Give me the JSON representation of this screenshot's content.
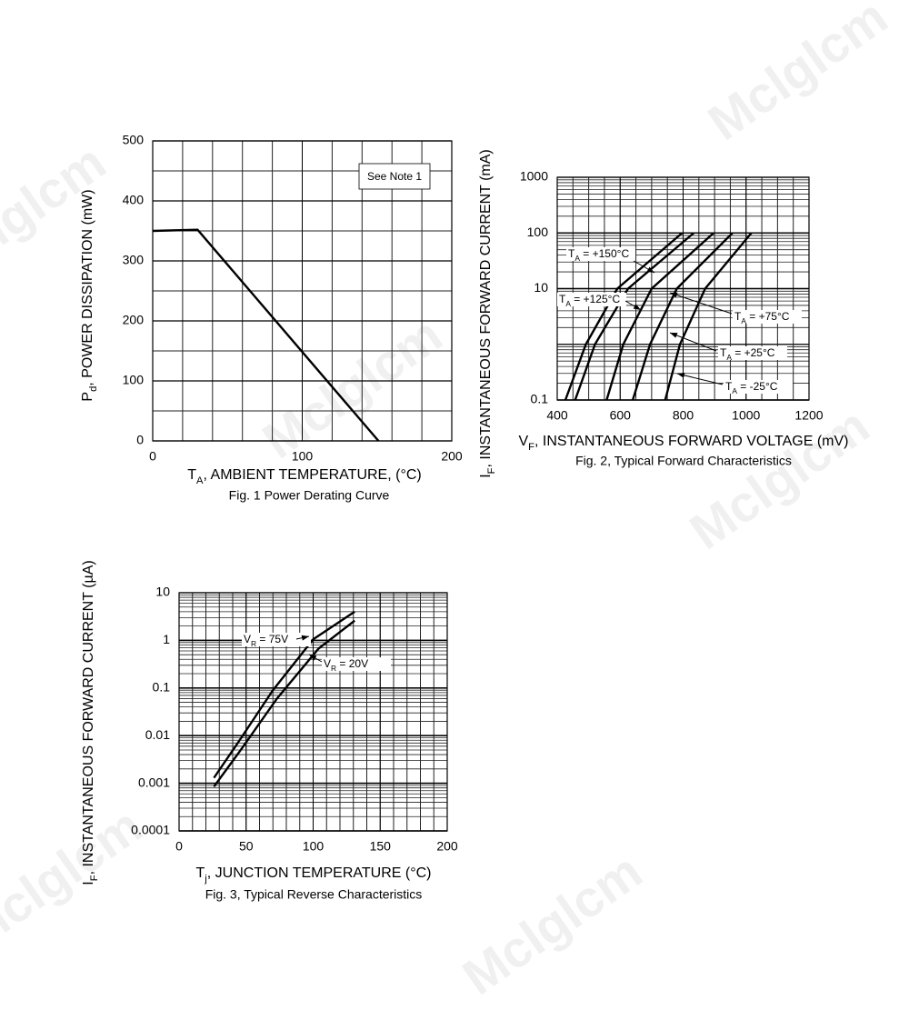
{
  "watermark": "Mclglcm",
  "chart_data": [
    {
      "type": "line",
      "title": "Fig. 1  Power Derating Curve",
      "x_label": [
        "T",
        "A",
        ", AMBIENT TEMPERATURE, (°C)"
      ],
      "y_label": [
        "P",
        "d",
        ", POWER DISSIPATION (mW)"
      ],
      "annotation": "See Note 1",
      "xlim": [
        0,
        200
      ],
      "xticks": [
        0,
        100,
        200
      ],
      "ylim": [
        0,
        500
      ],
      "yticks": [
        0,
        100,
        200,
        300,
        400,
        500
      ],
      "grid": true,
      "xgrid_step": 20,
      "ygrid_step": 50,
      "series": [
        {
          "color": "#000000",
          "x": [
            0,
            30,
            151
          ],
          "values": [
            350,
            352,
            0
          ]
        }
      ]
    },
    {
      "type": "line",
      "title": "Fig. 2, Typical Forward Characteristics",
      "x_label": [
        "V",
        "F",
        ", INSTANTANEOUS FORWARD VOLTAGE (mV)"
      ],
      "y_label": [
        "I",
        "F",
        ", INSTANTANEOUS FORWARD CURRENT (mA)"
      ],
      "xlim": [
        400,
        1200
      ],
      "xticks": [
        400,
        600,
        800,
        1000,
        1200
      ],
      "ylim": [
        0.1,
        1000
      ],
      "yticks": [
        0.1,
        10,
        100,
        1000
      ],
      "ylog": true,
      "grid": true,
      "xgrid_step": 50,
      "series": [
        {
          "label": [
            "T",
            "A",
            " = +150°C"
          ],
          "color": "#000000",
          "x": [
            426,
            491,
            591,
            797
          ],
          "values": [
            0.1,
            1,
            10,
            100
          ]
        },
        {
          "label": [
            "T",
            "A",
            " = +125°C"
          ],
          "color": "#000000",
          "x": [
            457,
            520,
            625,
            834
          ],
          "values": [
            0.1,
            1,
            10,
            100
          ]
        },
        {
          "label": [
            "T",
            "A",
            " = +75°C"
          ],
          "color": "#000000",
          "x": [
            557,
            610,
            700,
            897
          ],
          "values": [
            0.1,
            1,
            10,
            100
          ]
        },
        {
          "label": [
            "T",
            "A",
            " = +25°C"
          ],
          "color": "#000000",
          "x": [
            640,
            695,
            780,
            957
          ],
          "values": [
            0.1,
            1,
            10,
            100
          ]
        },
        {
          "label": [
            "T",
            "A",
            " = -25°C"
          ],
          "color": "#000000",
          "x": [
            743,
            790,
            870,
            1017
          ],
          "values": [
            0.1,
            1,
            10,
            100
          ]
        }
      ]
    },
    {
      "type": "line",
      "title": "Fig. 3, Typical Reverse Characteristics",
      "x_label": [
        "T",
        "j",
        ", JUNCTION TEMPERATURE (°C)"
      ],
      "y_label": [
        "I",
        "F",
        ", INSTANTANEOUS FORWARD CURRENT (µA)"
      ],
      "xlim": [
        0,
        200
      ],
      "xticks": [
        0,
        50,
        100,
        150,
        200
      ],
      "ylim": [
        0.0001,
        10
      ],
      "yticks": [
        0.0001,
        0.001,
        0.01,
        0.1,
        1,
        10
      ],
      "ylog": true,
      "grid": true,
      "xgrid_step": 10,
      "series": [
        {
          "label": [
            "V",
            "R",
            " = 75V"
          ],
          "color": "#000000",
          "x": [
            26,
            43,
            70,
            100,
            131
          ],
          "values": [
            0.0013,
            0.0065,
            0.09,
            1.05,
            4
          ]
        },
        {
          "label": [
            "V",
            "R",
            " = 20V"
          ],
          "color": "#000000",
          "x": [
            26,
            46,
            73,
            104,
            131
          ],
          "values": [
            0.00085,
            0.005,
            0.06,
            0.67,
            2.6
          ]
        }
      ]
    }
  ]
}
